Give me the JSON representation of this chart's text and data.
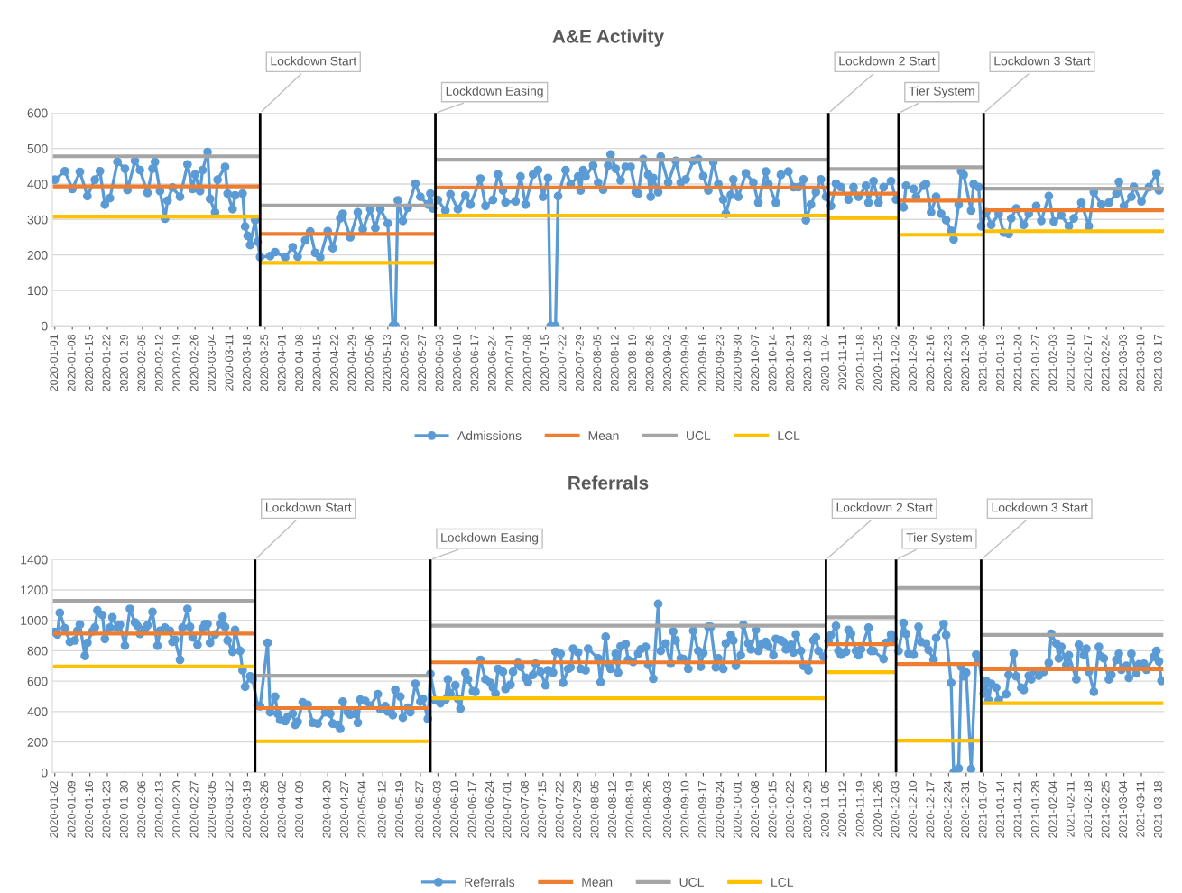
{
  "chart_data": [
    {
      "type": "line",
      "title": "A&E Activity",
      "grid": "y",
      "legend": "bottom",
      "line_style": "solid",
      "xlim": [
        "2019-12-31",
        "2021-03-19"
      ],
      "xticks": [
        "2020-01-01",
        "2020-01-08",
        "2020-01-15",
        "2020-01-22",
        "2020-01-29",
        "2020-02-05",
        "2020-02-12",
        "2020-02-19",
        "2020-02-26",
        "2020-03-04",
        "2020-03-11",
        "2020-03-18",
        "2020-03-25",
        "2020-04-01",
        "2020-04-08",
        "2020-04-15",
        "2020-04-22",
        "2020-04-29",
        "2020-05-06",
        "2020-05-13",
        "2020-05-20",
        "2020-05-27",
        "2020-06-03",
        "2020-06-10",
        "2020-06-17",
        "2020-06-24",
        "2020-07-01",
        "2020-07-08",
        "2020-07-15",
        "2020-07-22",
        "2020-07-29",
        "2020-08-05",
        "2020-08-12",
        "2020-08-19",
        "2020-08-26",
        "2020-09-02",
        "2020-09-09",
        "2020-09-16",
        "2020-09-23",
        "2020-09-30",
        "2020-10-07",
        "2020-10-14",
        "2020-10-21",
        "2020-10-28",
        "2020-11-04",
        "2020-11-11",
        "2020-11-18",
        "2020-11-25",
        "2020-12-02",
        "2020-12-09",
        "2020-12-16",
        "2020-12-23",
        "2020-12-30",
        "2021-01-06",
        "2021-01-13",
        "2021-01-20",
        "2021-01-27",
        "2021-02-03",
        "2021-02-10",
        "2021-02-17",
        "2021-02-24",
        "2021-03-03",
        "2021-03-10",
        "2021-03-17"
      ],
      "ylim": [
        0,
        600
      ],
      "yticks": [
        0,
        100,
        200,
        300,
        400,
        500,
        600
      ],
      "ref_lines": [
        {
          "axis": "x",
          "value": "2020-03-23",
          "label": "Lockdown Start",
          "color": "#000000"
        },
        {
          "axis": "x",
          "value": "2020-06-01",
          "label": "Lockdown Easing",
          "color": "#000000"
        },
        {
          "axis": "x",
          "value": "2020-11-05",
          "label": "Lockdown 2 Start",
          "color": "#000000"
        },
        {
          "axis": "x",
          "value": "2020-12-03",
          "label": "Tier System",
          "color": "#000000"
        },
        {
          "axis": "x",
          "value": "2021-01-06",
          "label": "Lockdown 3 Start",
          "color": "#000000"
        }
      ],
      "series": [
        {
          "name": "Admissions",
          "color": "#5b9bd5",
          "marker": "circle",
          "x": [
            "2020-01-01",
            "2020-01-05",
            "2020-01-08",
            "2020-01-11",
            "2020-01-14",
            "2020-01-17",
            "2020-01-19",
            "2020-01-21",
            "2020-01-23",
            "2020-01-26",
            "2020-01-29",
            "2020-01-30",
            "2020-02-02",
            "2020-02-04",
            "2020-02-07",
            "2020-02-09",
            "2020-02-10",
            "2020-02-12",
            "2020-02-14",
            "2020-02-15",
            "2020-02-17",
            "2020-02-20",
            "2020-02-23",
            "2020-02-25",
            "2020-02-26",
            "2020-02-28",
            "2020-02-29",
            "2020-03-02",
            "2020-03-03",
            "2020-03-05",
            "2020-03-06",
            "2020-03-09",
            "2020-03-10",
            "2020-03-12",
            "2020-03-13",
            "2020-03-16",
            "2020-03-17",
            "2020-03-18",
            "2020-03-19",
            "2020-03-21",
            "2020-03-22",
            "2020-03-23",
            "2020-03-27",
            "2020-03-29",
            "2020-04-02",
            "2020-04-05",
            "2020-04-07",
            "2020-04-10",
            "2020-04-12",
            "2020-04-14",
            "2020-04-16",
            "2020-04-19",
            "2020-04-21",
            "2020-04-24",
            "2020-04-25",
            "2020-04-28",
            "2020-05-01",
            "2020-05-03",
            "2020-05-06",
            "2020-05-08",
            "2020-05-10",
            "2020-05-13",
            "2020-05-15",
            "2020-05-16",
            "2020-05-17",
            "2020-05-19",
            "2020-05-21",
            "2020-05-24",
            "2020-05-26",
            "2020-05-29",
            "2020-05-30",
            "2020-05-31",
            "2020-06-02",
            "2020-06-05",
            "2020-06-07",
            "2020-06-10",
            "2020-06-13",
            "2020-06-15",
            "2020-06-19",
            "2020-06-21",
            "2020-06-24",
            "2020-06-26",
            "2020-06-28",
            "2020-06-29",
            "2020-07-03",
            "2020-07-05",
            "2020-07-07",
            "2020-07-10",
            "2020-07-12",
            "2020-07-14",
            "2020-07-16",
            "2020-07-17",
            "2020-07-19",
            "2020-07-20",
            "2020-07-23",
            "2020-07-25",
            "2020-07-28",
            "2020-07-29",
            "2020-07-30",
            "2020-07-31",
            "2020-08-03",
            "2020-08-05",
            "2020-08-07",
            "2020-08-09",
            "2020-08-10",
            "2020-08-12",
            "2020-08-14",
            "2020-08-16",
            "2020-08-18",
            "2020-08-20",
            "2020-08-21",
            "2020-08-23",
            "2020-08-25",
            "2020-08-26",
            "2020-08-27",
            "2020-08-29",
            "2020-08-30",
            "2020-09-02",
            "2020-09-05",
            "2020-09-07",
            "2020-09-09",
            "2020-09-12",
            "2020-09-14",
            "2020-09-16",
            "2020-09-18",
            "2020-09-20",
            "2020-09-22",
            "2020-09-24",
            "2020-09-25",
            "2020-09-27",
            "2020-09-28",
            "2020-09-30",
            "2020-10-03",
            "2020-10-06",
            "2020-10-08",
            "2020-10-11",
            "2020-10-12",
            "2020-10-15",
            "2020-10-17",
            "2020-10-20",
            "2020-10-22",
            "2020-10-24",
            "2020-10-26",
            "2020-10-27",
            "2020-10-29",
            "2020-10-31",
            "2020-11-02",
            "2020-11-04",
            "2020-11-06",
            "2020-11-08",
            "2020-11-10",
            "2020-11-13",
            "2020-11-15",
            "2020-11-17",
            "2020-11-20",
            "2020-11-21",
            "2020-11-23",
            "2020-11-25",
            "2020-11-27",
            "2020-11-30",
            "2020-12-02",
            "2020-12-05",
            "2020-12-06",
            "2020-12-09",
            "2020-12-10",
            "2020-12-13",
            "2020-12-14",
            "2020-12-16",
            "2020-12-18",
            "2020-12-20",
            "2020-12-22",
            "2020-12-24",
            "2020-12-25",
            "2020-12-27",
            "2020-12-28",
            "2020-12-29",
            "2021-01-01",
            "2021-01-02",
            "2021-01-04",
            "2021-01-05",
            "2021-01-07",
            "2021-01-09",
            "2021-01-12",
            "2021-01-14",
            "2021-01-16",
            "2021-01-17",
            "2021-01-19",
            "2021-01-22",
            "2021-01-24",
            "2021-01-27",
            "2021-01-29",
            "2021-02-01",
            "2021-02-03",
            "2021-02-06",
            "2021-02-09",
            "2021-02-11",
            "2021-02-14",
            "2021-02-17",
            "2021-02-19",
            "2021-02-22",
            "2021-02-25",
            "2021-02-28",
            "2021-03-01",
            "2021-03-03",
            "2021-03-06",
            "2021-03-07",
            "2021-03-10",
            "2021-03-13",
            "2021-03-16",
            "2021-03-17"
          ],
          "values": [
            412,
            436,
            386,
            434,
            366,
            412,
            436,
            342,
            360,
            462,
            443,
            383,
            465,
            439,
            375,
            443,
            462,
            380,
            302,
            353,
            390,
            364,
            455,
            386,
            427,
            380,
            439,
            490,
            358,
            320,
            412,
            448,
            373,
            329,
            368,
            373,
            280,
            254,
            228,
            298,
            237,
            194,
            197,
            208,
            193,
            222,
            195,
            241,
            266,
            206,
            193,
            267,
            219,
            303,
            316,
            250,
            320,
            272,
            329,
            276,
            329,
            289,
            0,
            0,
            354,
            296,
            333,
            401,
            364,
            342,
            373,
            331,
            355,
            325,
            371,
            329,
            368,
            342,
            415,
            338,
            355,
            427,
            382,
            348,
            351,
            421,
            342,
            427,
            439,
            364,
            417,
            0,
            0,
            366,
            439,
            399,
            421,
            382,
            439,
            421,
            452,
            404,
            384,
            452,
            483,
            443,
            410,
            448,
            448,
            377,
            373,
            470,
            426,
            364,
            417,
            377,
            477,
            404,
            465,
            404,
            413,
            465,
            470,
            422,
            382,
            461,
            400,
            356,
            316,
            369,
            413,
            364,
            430,
            404,
            347,
            435,
            400,
            347,
            426,
            435,
            391,
            391,
            413,
            298,
            342,
            377,
            413,
            364,
            338,
            401,
            391,
            356,
            391,
            364,
            395,
            347,
            408,
            347,
            391,
            408,
            356,
            334,
            395,
            386,
            364,
            395,
            400,
            320,
            364,
            316,
            298,
            268,
            244,
            342,
            436,
            426,
            325,
            400,
            391,
            281,
            320,
            285,
            316,
            263,
            259,
            303,
            331,
            285,
            316,
            338,
            296,
            366,
            294,
            312,
            281,
            303,
            347,
            281,
            377,
            342,
            347,
            373,
            406,
            338,
            364,
            392,
            351,
            391,
            430,
            382
          ]
        },
        {
          "name": "Mean",
          "color": "#ed7d31",
          "marker": "none",
          "x": [
            "2020-01-01",
            "2020-03-22",
            "2020-03-23",
            "2020-03-24",
            "2020-05-31",
            "2020-06-01",
            "2020-06-02",
            "2020-11-04",
            "2020-11-05",
            "2020-11-06",
            "2020-12-02",
            "2020-12-03",
            "2020-12-04",
            "2021-01-05",
            "2021-01-06",
            "2021-01-07",
            "2021-03-19"
          ],
          "values": [
            393,
            393,
            null,
            259,
            259,
            null,
            390,
            390,
            null,
            373,
            373,
            null,
            353,
            353,
            null,
            326,
            326
          ]
        },
        {
          "name": "UCL",
          "color": "#a5a5a5",
          "marker": "none",
          "x": [
            "2020-01-01",
            "2020-03-22",
            "2020-03-23",
            "2020-03-24",
            "2020-05-31",
            "2020-06-01",
            "2020-06-02",
            "2020-11-04",
            "2020-11-05",
            "2020-11-06",
            "2020-12-02",
            "2020-12-03",
            "2020-12-04",
            "2021-01-05",
            "2021-01-06",
            "2021-01-07",
            "2021-03-19"
          ],
          "values": [
            478,
            478,
            null,
            339,
            339,
            null,
            468,
            468,
            null,
            442,
            442,
            null,
            447,
            447,
            null,
            387,
            387
          ]
        },
        {
          "name": "LCL",
          "color": "#ffc000",
          "marker": "none",
          "x": [
            "2020-01-01",
            "2020-03-22",
            "2020-03-23",
            "2020-03-24",
            "2020-05-31",
            "2020-06-01",
            "2020-06-02",
            "2020-11-04",
            "2020-11-05",
            "2020-11-06",
            "2020-12-02",
            "2020-12-03",
            "2020-12-04",
            "2021-01-05",
            "2021-01-06",
            "2021-01-07",
            "2021-03-19"
          ],
          "values": [
            308,
            308,
            null,
            178,
            178,
            null,
            311,
            311,
            null,
            304,
            304,
            null,
            257,
            257,
            null,
            267,
            267
          ]
        }
      ]
    },
    {
      "type": "line",
      "title": "Referrals",
      "grid": "y",
      "legend": "bottom",
      "line_style": "solid",
      "xlim": [
        "2020-01-01",
        "2021-03-20"
      ],
      "xticks": [
        "2020-01-02",
        "2020-01-09",
        "2020-01-16",
        "2020-01-23",
        "2020-01-30",
        "2020-02-06",
        "2020-02-13",
        "2020-02-20",
        "2020-02-27",
        "2020-03-05",
        "2020-03-12",
        "2020-03-19",
        "2020-03-26",
        "2020-04-02",
        "2020-04-09",
        "2020-04-20",
        "2020-04-27",
        "2020-05-04",
        "2020-05-12",
        "2020-05-19",
        "2020-05-27",
        "2020-06-03",
        "2020-06-10",
        "2020-06-17",
        "2020-06-24",
        "2020-07-01",
        "2020-07-08",
        "2020-07-15",
        "2020-07-22",
        "2020-07-29",
        "2020-08-05",
        "2020-08-12",
        "2020-08-19",
        "2020-08-26",
        "2020-09-03",
        "2020-09-10",
        "2020-09-17",
        "2020-09-24",
        "2020-10-01",
        "2020-10-08",
        "2020-10-15",
        "2020-10-22",
        "2020-10-29",
        "2020-11-05",
        "2020-11-12",
        "2020-11-19",
        "2020-11-26",
        "2020-12-03",
        "2020-12-10",
        "2020-12-17",
        "2020-12-24",
        "2020-12-31",
        "2021-01-07",
        "2021-01-14",
        "2021-01-21",
        "2021-01-28",
        "2021-02-04",
        "2021-02-11",
        "2021-02-18",
        "2021-02-25",
        "2021-03-04",
        "2021-03-11",
        "2021-03-18"
      ],
      "ylim": [
        0,
        1400
      ],
      "yticks": [
        0,
        200,
        400,
        600,
        800,
        1000,
        1200,
        1400
      ],
      "ref_lines": [
        {
          "axis": "x",
          "value": "2020-03-22",
          "label": "Lockdown Start",
          "color": "#000000"
        },
        {
          "axis": "x",
          "value": "2020-05-31",
          "label": "Lockdown Easing",
          "color": "#000000"
        },
        {
          "axis": "x",
          "value": "2020-11-05",
          "label": "Lockdown 2 Start",
          "color": "#000000"
        },
        {
          "axis": "x",
          "value": "2020-12-03",
          "label": "Tier System",
          "color": "#000000"
        },
        {
          "axis": "x",
          "value": "2021-01-06",
          "label": "Lockdown 3 Start",
          "color": "#000000"
        }
      ],
      "series": [
        {
          "name": "Referrals",
          "color": "#5b9bd5",
          "marker": "circle",
          "x": [
            "2020-01-02",
            "2020-01-03",
            "2020-01-04",
            "2020-01-06",
            "2020-01-08",
            "2020-01-10",
            "2020-01-11",
            "2020-01-12",
            "2020-01-14",
            "2020-01-15",
            "2020-01-17",
            "2020-01-18",
            "2020-01-19",
            "2020-01-21",
            "2020-01-22",
            "2020-01-24",
            "2020-01-25",
            "2020-01-27",
            "2020-01-28",
            "2020-01-30",
            "2020-02-01",
            "2020-02-03",
            "2020-02-04",
            "2020-02-05",
            "2020-02-07",
            "2020-02-08",
            "2020-02-10",
            "2020-02-12",
            "2020-02-13",
            "2020-02-15",
            "2020-02-17",
            "2020-02-18",
            "2020-02-19",
            "2020-02-21",
            "2020-02-22",
            "2020-02-24",
            "2020-02-25",
            "2020-02-26",
            "2020-02-28",
            "2020-03-01",
            "2020-03-02",
            "2020-03-03",
            "2020-03-04",
            "2020-03-06",
            "2020-03-08",
            "2020-03-09",
            "2020-03-10",
            "2020-03-11",
            "2020-03-13",
            "2020-03-14",
            "2020-03-16",
            "2020-03-17",
            "2020-03-18",
            "2020-03-20",
            "2020-03-21",
            "2020-03-23",
            "2020-03-24",
            "2020-03-27",
            "2020-03-28",
            "2020-03-30",
            "2020-03-31",
            "2020-04-01",
            "2020-04-03",
            "2020-04-04",
            "2020-04-06",
            "2020-04-07",
            "2020-04-08",
            "2020-04-10",
            "2020-04-12",
            "2020-04-14",
            "2020-04-16",
            "2020-04-19",
            "2020-04-21",
            "2020-04-22",
            "2020-04-24",
            "2020-04-25",
            "2020-04-26",
            "2020-04-28",
            "2020-04-29",
            "2020-05-01",
            "2020-05-02",
            "2020-05-03",
            "2020-05-05",
            "2020-05-07",
            "2020-05-10",
            "2020-05-11",
            "2020-05-13",
            "2020-05-14",
            "2020-05-16",
            "2020-05-17",
            "2020-05-19",
            "2020-05-20",
            "2020-05-22",
            "2020-05-23",
            "2020-05-25",
            "2020-05-27",
            "2020-05-28",
            "2020-05-30",
            "2020-05-31",
            "2020-06-02",
            "2020-06-04",
            "2020-06-06",
            "2020-06-07",
            "2020-06-08",
            "2020-06-10",
            "2020-06-11",
            "2020-06-12",
            "2020-06-14",
            "2020-06-15",
            "2020-06-17",
            "2020-06-18",
            "2020-06-20",
            "2020-06-22",
            "2020-06-24",
            "2020-06-25",
            "2020-06-26",
            "2020-06-27",
            "2020-06-29",
            "2020-06-30",
            "2020-07-02",
            "2020-07-03",
            "2020-07-05",
            "2020-07-06",
            "2020-07-08",
            "2020-07-09",
            "2020-07-11",
            "2020-07-12",
            "2020-07-14",
            "2020-07-16",
            "2020-07-17",
            "2020-07-19",
            "2020-07-20",
            "2020-07-22",
            "2020-07-23",
            "2020-07-25",
            "2020-07-26",
            "2020-07-27",
            "2020-07-29",
            "2020-07-30",
            "2020-08-01",
            "2020-08-02",
            "2020-08-06",
            "2020-08-07",
            "2020-08-09",
            "2020-08-10",
            "2020-08-11",
            "2020-08-13",
            "2020-08-14",
            "2020-08-15",
            "2020-08-17",
            "2020-08-18",
            "2020-08-20",
            "2020-08-22",
            "2020-08-23",
            "2020-08-25",
            "2020-08-26",
            "2020-08-28",
            "2020-08-30",
            "2020-08-31",
            "2020-09-02",
            "2020-09-04",
            "2020-09-05",
            "2020-09-06",
            "2020-09-08",
            "2020-09-09",
            "2020-09-11",
            "2020-09-13",
            "2020-09-15",
            "2020-09-16",
            "2020-09-17",
            "2020-09-19",
            "2020-09-20",
            "2020-09-22",
            "2020-09-23",
            "2020-09-25",
            "2020-09-26",
            "2020-09-28",
            "2020-09-29",
            "2020-09-30",
            "2020-10-02",
            "2020-10-03",
            "2020-10-05",
            "2020-10-06",
            "2020-10-08",
            "2020-10-09",
            "2020-10-10",
            "2020-10-12",
            "2020-10-13",
            "2020-10-15",
            "2020-10-16",
            "2020-10-18",
            "2020-10-19",
            "2020-10-20",
            "2020-10-22",
            "2020-10-23",
            "2020-10-24",
            "2020-10-26",
            "2020-10-27",
            "2020-10-29",
            "2020-10-31",
            "2020-11-01",
            "2020-11-02",
            "2020-11-04",
            "2020-11-06",
            "2020-11-07",
            "2020-11-09",
            "2020-11-10",
            "2020-11-11",
            "2020-11-13",
            "2020-11-14",
            "2020-11-15",
            "2020-11-17",
            "2020-11-18",
            "2020-11-19",
            "2020-11-22",
            "2020-11-23",
            "2020-11-24",
            "2020-11-28",
            "2020-11-29",
            "2020-12-01",
            "2020-12-02",
            "2020-12-04",
            "2020-12-06",
            "2020-12-07",
            "2020-12-08",
            "2020-12-10",
            "2020-12-12",
            "2020-12-13",
            "2020-12-15",
            "2020-12-16",
            "2020-12-18",
            "2020-12-19",
            "2020-12-22",
            "2020-12-23",
            "2020-12-25",
            "2020-12-26",
            "2020-12-28",
            "2020-12-29",
            "2020-12-30",
            "2020-12-31",
            "2021-01-02",
            "2021-01-04",
            "2021-01-05",
            "2021-01-07",
            "2021-01-08",
            "2021-01-09",
            "2021-01-10",
            "2021-01-12",
            "2021-01-13",
            "2021-01-16",
            "2021-01-17",
            "2021-01-19",
            "2021-01-20",
            "2021-01-22",
            "2021-01-23",
            "2021-01-25",
            "2021-01-26",
            "2021-01-27",
            "2021-01-29",
            "2021-01-31",
            "2021-02-02",
            "2021-02-03",
            "2021-02-05",
            "2021-02-06",
            "2021-02-07",
            "2021-02-09",
            "2021-02-10",
            "2021-02-13",
            "2021-02-14",
            "2021-02-16",
            "2021-02-17",
            "2021-02-18",
            "2021-02-20",
            "2021-02-22",
            "2021-02-23",
            "2021-02-24",
            "2021-02-26",
            "2021-02-27",
            "2021-03-01",
            "2021-03-02",
            "2021-03-03",
            "2021-03-05",
            "2021-03-06",
            "2021-03-07",
            "2021-03-09",
            "2021-03-10",
            "2021-03-12",
            "2021-03-13",
            "2021-03-16",
            "2021-03-17",
            "2021-03-18",
            "2021-03-19"
          ],
          "values": [
            923,
            907,
            1049,
            947,
            858,
            868,
            931,
            972,
            766,
            852,
            927,
            953,
            1065,
            1035,
            878,
            951,
            1020,
            951,
            970,
            833,
            1075,
            986,
            963,
            911,
            943,
            967,
            1055,
            833,
            931,
            951,
            931,
            858,
            872,
            740,
            951,
            1075,
            957,
            888,
            839,
            947,
            976,
            976,
            852,
            907,
            976,
            1022,
            957,
            868,
            793,
            937,
            799,
            671,
            563,
            632,
            612,
            439,
            435,
            852,
            396,
            498,
            386,
            346,
            337,
            366,
            386,
            313,
            333,
            461,
            445,
            327,
            321,
            396,
            386,
            321,
            313,
            287,
            465,
            396,
            380,
            386,
            327,
            478,
            470,
            439,
            514,
            415,
            435,
            400,
            376,
            543,
            498,
            360,
            425,
            396,
            583,
            465,
            484,
            352,
            648,
            474,
            455,
            478,
            612,
            514,
            573,
            484,
            419,
            656,
            612,
            533,
            530,
            740,
            612,
            589,
            557,
            518,
            681,
            661,
            549,
            577,
            661,
            720,
            695,
            622,
            593,
            642,
            715,
            661,
            573,
            671,
            656,
            793,
            780,
            589,
            681,
            691,
            813,
            789,
            681,
            671,
            813,
            750,
            593,
            892,
            711,
            681,
            780,
            656,
            829,
            845,
            740,
            726,
            780,
            809,
            825,
            707,
            616,
            1108,
            799,
            848,
            715,
            927,
            868,
            750,
            746,
            681,
            931,
            799,
            695,
            785,
            957,
            957,
            691,
            750,
            681,
            848,
            903,
            868,
            701,
            770,
            970,
            848,
            809,
            937,
            799,
            839,
            858,
            829,
            770,
            878,
            868,
            858,
            809,
            839,
            789,
            907,
            799,
            701,
            671,
            868,
            888,
            799,
            760,
            864,
            903,
            963,
            799,
            774,
            793,
            937,
            911,
            799,
            770,
            809,
            951,
            799,
            799,
            746,
            852,
            907,
            878,
            799,
            982,
            911,
            780,
            774,
            957,
            858,
            848,
            805,
            740,
            884,
            976,
            903,
            589,
            0,
            26,
            695,
            632,
            656,
            22,
            774,
            750,
            518,
            602,
            474,
            583,
            557,
            474,
            514,
            642,
            780,
            632,
            557,
            543,
            636,
            612,
            667,
            636,
            661,
            720,
            911,
            848,
            750,
            825,
            707,
            770,
            612,
            839,
            770,
            813,
            661,
            530,
            825,
            760,
            750,
            612,
            642,
            740,
            780,
            675,
            701,
            622,
            780,
            652,
            711,
            715,
            675,
            760,
            799,
            730,
            602
          ]
        },
        {
          "name": "Mean",
          "color": "#ed7d31",
          "marker": "none",
          "x": [
            "2020-01-02",
            "2020-03-21",
            "2020-03-22",
            "2020-03-23",
            "2020-05-30",
            "2020-05-31",
            "2020-06-01",
            "2020-11-04",
            "2020-11-05",
            "2020-11-06",
            "2020-12-02",
            "2020-12-03",
            "2020-12-04",
            "2021-01-05",
            "2021-01-06",
            "2021-01-07",
            "2021-03-19"
          ],
          "values": [
            913,
            913,
            null,
            423,
            423,
            null,
            724,
            724,
            null,
            843,
            843,
            null,
            713,
            713,
            null,
            679,
            679
          ]
        },
        {
          "name": "UCL",
          "color": "#a5a5a5",
          "marker": "none",
          "x": [
            "2020-01-02",
            "2020-03-21",
            "2020-03-22",
            "2020-03-23",
            "2020-05-30",
            "2020-05-31",
            "2020-06-01",
            "2020-11-04",
            "2020-11-05",
            "2020-11-06",
            "2020-12-02",
            "2020-12-03",
            "2020-12-04",
            "2021-01-05",
            "2021-01-06",
            "2021-01-07",
            "2021-03-19"
          ],
          "values": [
            1128,
            1128,
            null,
            636,
            636,
            null,
            965,
            965,
            null,
            1020,
            1020,
            null,
            1213,
            1213,
            null,
            904,
            904
          ]
        },
        {
          "name": "LCL",
          "color": "#ffc000",
          "marker": "none",
          "x": [
            "2020-01-02",
            "2020-03-21",
            "2020-03-22",
            "2020-03-23",
            "2020-05-30",
            "2020-05-31",
            "2020-06-01",
            "2020-11-04",
            "2020-11-05",
            "2020-11-06",
            "2020-12-02",
            "2020-12-03",
            "2020-12-04",
            "2021-01-05",
            "2021-01-06",
            "2021-01-07",
            "2021-03-19"
          ],
          "values": [
            697,
            697,
            null,
            205,
            205,
            null,
            488,
            488,
            null,
            659,
            659,
            null,
            209,
            209,
            null,
            455,
            455
          ]
        }
      ]
    }
  ]
}
